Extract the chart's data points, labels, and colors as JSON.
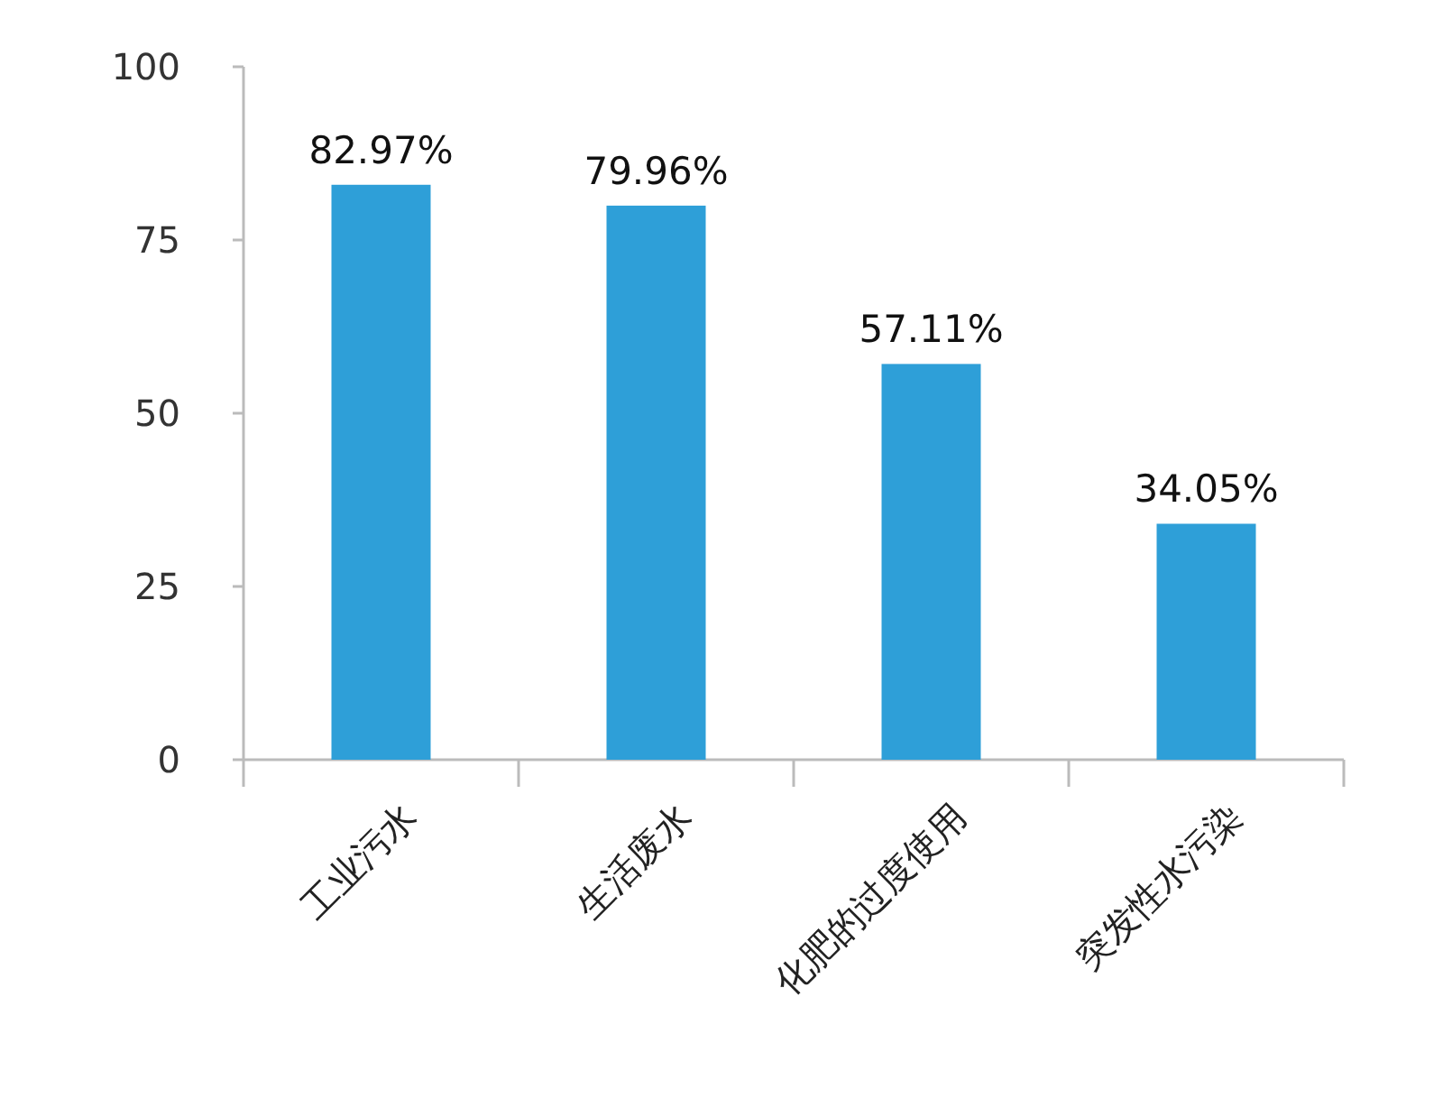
{
  "chart_data": {
    "type": "bar",
    "categories": [
      "工业污水",
      "生活废水",
      "化肥的过度使用",
      "突发性水污染"
    ],
    "values": [
      82.97,
      79.96,
      57.11,
      34.05
    ],
    "value_labels": [
      "82.97%",
      "79.96%",
      "57.11%",
      "34.05%"
    ],
    "color": "#2e9fd8",
    "ylim": [
      0,
      100
    ],
    "yticks": [
      0,
      25,
      50,
      75,
      100
    ],
    "grid": false
  }
}
